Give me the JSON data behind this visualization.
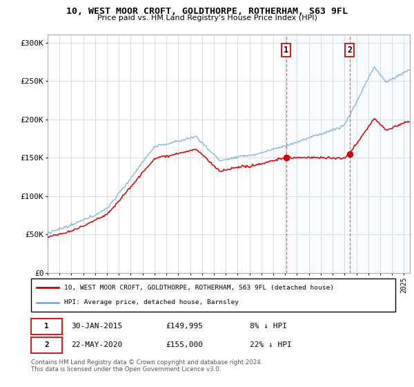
{
  "title": "10, WEST MOOR CROFT, GOLDTHORPE, ROTHERHAM, S63 9FL",
  "subtitle": "Price paid vs. HM Land Registry's House Price Index (HPI)",
  "ylim": [
    0,
    310000
  ],
  "xlim_start": 1995.0,
  "xlim_end": 2025.5,
  "sale1_date": 2015.08,
  "sale1_price": 149995,
  "sale2_date": 2020.42,
  "sale2_price": 155000,
  "hpi_color": "#7aadd4",
  "price_color": "#cc0000",
  "marker_color": "#cc0000",
  "shade_color": "#ddeeff",
  "grid_color": "#cccccc",
  "legend1_text": "10, WEST MOOR CROFT, GOLDTHORPE, ROTHERHAM, S63 9FL (detached house)",
  "legend2_text": "HPI: Average price, detached house, Barnsley",
  "ann1_date": "30-JAN-2015",
  "ann1_price": "£149,995",
  "ann1_pct": "8% ↓ HPI",
  "ann2_date": "22-MAY-2020",
  "ann2_price": "£155,000",
  "ann2_pct": "22% ↓ HPI",
  "footer": "Contains HM Land Registry data © Crown copyright and database right 2024.\nThis data is licensed under the Open Government Licence v3.0."
}
